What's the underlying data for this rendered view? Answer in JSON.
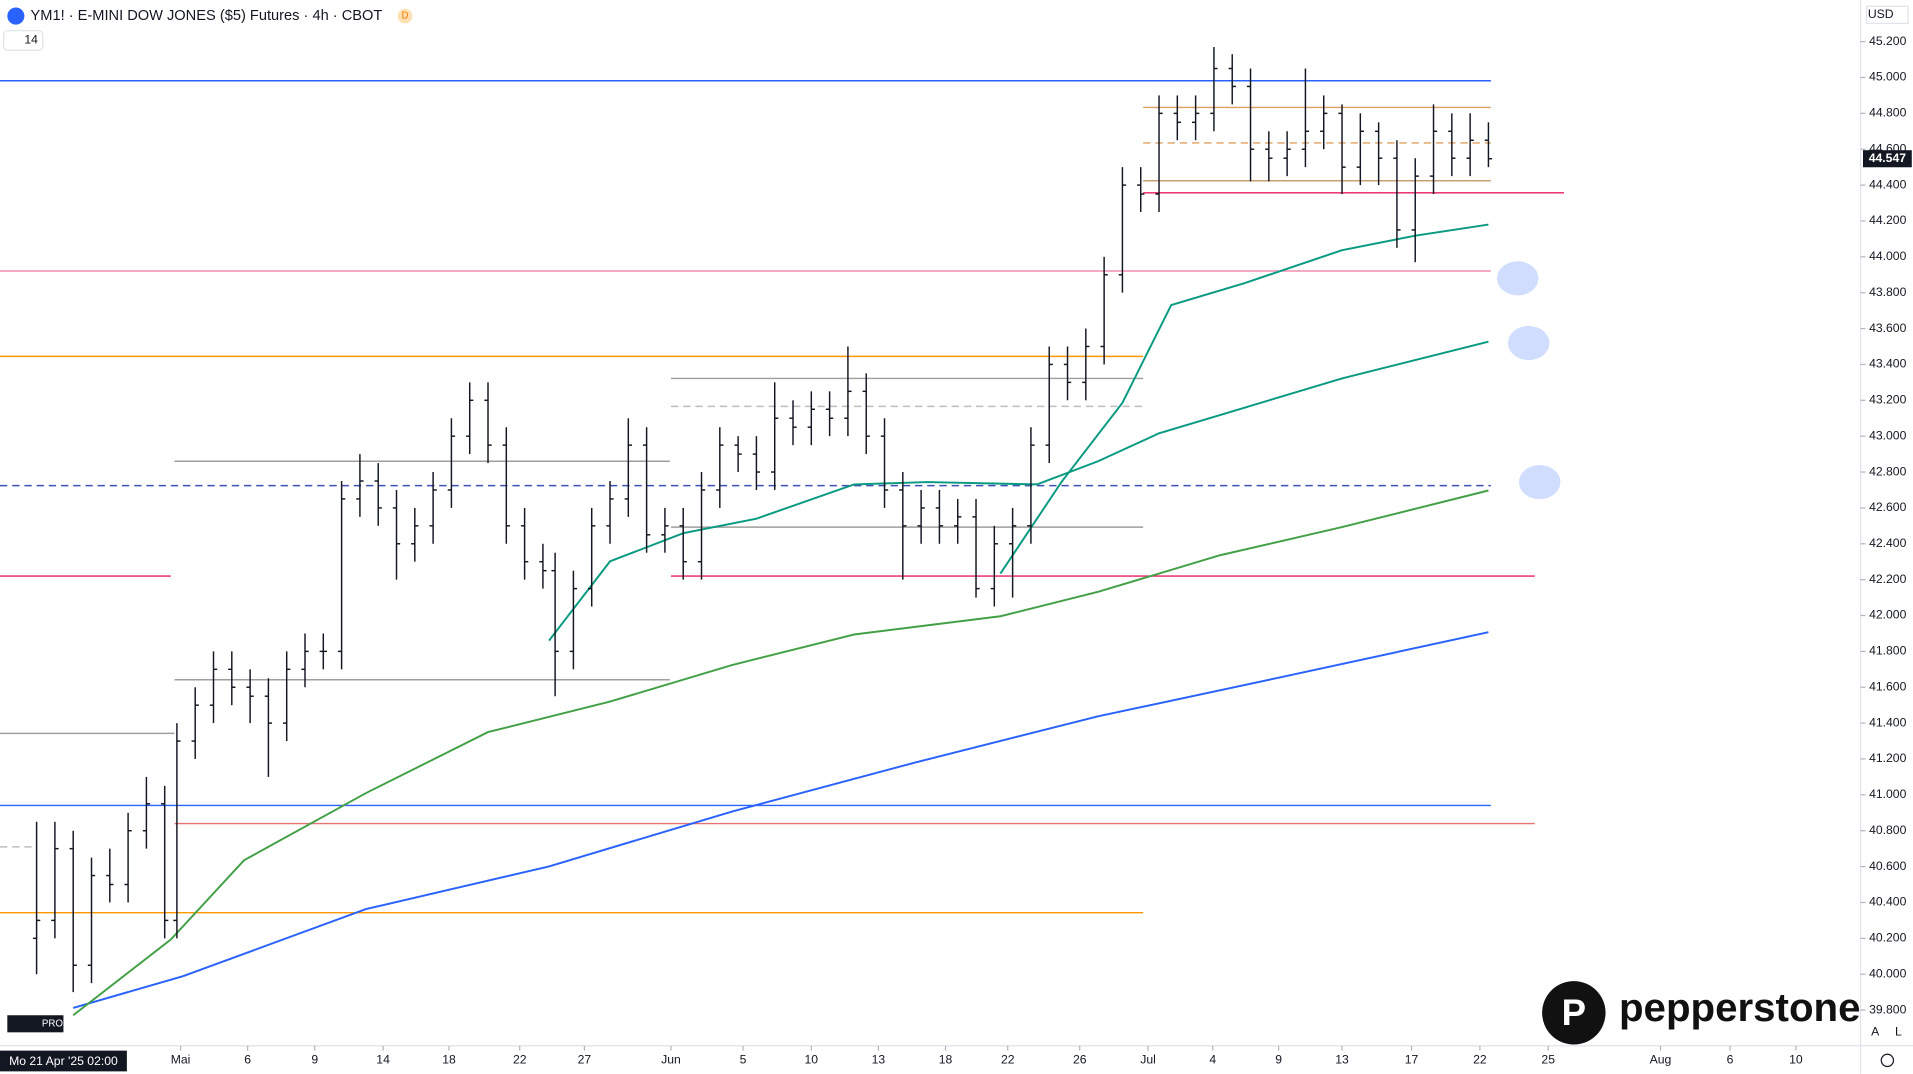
{
  "chart_data": {
    "type": "ohlc",
    "title": "YM1! · E-MINI DOW JONES ($5) Futures · 4h · CBOT",
    "badge": "D",
    "interval_box": "14",
    "currency": "USD",
    "crosshair_label": "Mo 21 Apr '25  02:00",
    "last_price": {
      "value": 44547,
      "label": "44.547"
    },
    "brand": "pepperstone",
    "logo_sub": "PRO",
    "scale_buttons": [
      "A",
      "L"
    ],
    "color": "#131722",
    "xlim": [
      0,
      152.5
    ],
    "ylim": [
      39601,
      45431
    ],
    "xticks": [
      {
        "value": 14.8,
        "label": "Mai"
      },
      {
        "value": 20.3,
        "label": "6"
      },
      {
        "value": 25.8,
        "label": "9"
      },
      {
        "value": 31.4,
        "label": "14"
      },
      {
        "value": 36.8,
        "label": "18"
      },
      {
        "value": 42.6,
        "label": "22"
      },
      {
        "value": 47.9,
        "label": "27"
      },
      {
        "value": 55,
        "label": "Jun"
      },
      {
        "value": 60.9,
        "label": "5"
      },
      {
        "value": 66.5,
        "label": "10"
      },
      {
        "value": 72,
        "label": "13"
      },
      {
        "value": 77.5,
        "label": "18"
      },
      {
        "value": 82.6,
        "label": "22"
      },
      {
        "value": 88.5,
        "label": "26"
      },
      {
        "value": 94.1,
        "label": "Jul"
      },
      {
        "value": 99.4,
        "label": "4"
      },
      {
        "value": 104.8,
        "label": "9"
      },
      {
        "value": 110,
        "label": "13"
      },
      {
        "value": 115.7,
        "label": "17"
      },
      {
        "value": 121.3,
        "label": "22"
      },
      {
        "value": 126.9,
        "label": "25"
      },
      {
        "value": 136.1,
        "label": "Aug"
      },
      {
        "value": 141.8,
        "label": "6"
      },
      {
        "value": 147.2,
        "label": "10"
      }
    ],
    "yticks": [
      {
        "value": 39800,
        "label": "39.800"
      },
      {
        "value": 40000,
        "label": "40.000"
      },
      {
        "value": 40200,
        "label": "40.200"
      },
      {
        "value": 40400,
        "label": "40.400"
      },
      {
        "value": 40600,
        "label": "40.600"
      },
      {
        "value": 40800,
        "label": "40.800"
      },
      {
        "value": 41000,
        "label": "41.000"
      },
      {
        "value": 41200,
        "label": "41.200"
      },
      {
        "value": 41400,
        "label": "41.400"
      },
      {
        "value": 41600,
        "label": "41.600"
      },
      {
        "value": 41800,
        "label": "41.800"
      },
      {
        "value": 42000,
        "label": "42.000"
      },
      {
        "value": 42200,
        "label": "42.200"
      },
      {
        "value": 42400,
        "label": "42.400"
      },
      {
        "value": 42600,
        "label": "42.600"
      },
      {
        "value": 42800,
        "label": "42.800"
      },
      {
        "value": 43000,
        "label": "43.000"
      },
      {
        "value": 43200,
        "label": "43.200"
      },
      {
        "value": 43400,
        "label": "43.400"
      },
      {
        "value": 43600,
        "label": "43.600"
      },
      {
        "value": 43800,
        "label": "43.800"
      },
      {
        "value": 44000,
        "label": "44.000"
      },
      {
        "value": 44200,
        "label": "44.200"
      },
      {
        "value": 44400,
        "label": "44.400"
      },
      {
        "value": 44600,
        "label": "44.600"
      },
      {
        "value": 44800,
        "label": "44.800"
      },
      {
        "value": 45000,
        "label": "45.000"
      },
      {
        "value": 45200,
        "label": "45.200"
      }
    ],
    "x": [
      3,
      4.5,
      6,
      7.5,
      9,
      10.5,
      12,
      13.5,
      14.5,
      16,
      17.5,
      19,
      20.5,
      22,
      23.5,
      25,
      26.5,
      28,
      29.5,
      31,
      32.5,
      34,
      35.5,
      37,
      38.5,
      40,
      41.5,
      43,
      44.5,
      45.5,
      47,
      48.5,
      50,
      51.5,
      53,
      54.5,
      56,
      57.5,
      59,
      60.5,
      62,
      63.5,
      65,
      66.5,
      68,
      69.5,
      71,
      72.5,
      74,
      75.5,
      77,
      78.5,
      80,
      81.5,
      83,
      84.5,
      86,
      87.5,
      89,
      90.5,
      92,
      93.5,
      95,
      96.5,
      98,
      99.5,
      101,
      102.5,
      104,
      105.5,
      107,
      108.5,
      110,
      111.5,
      113,
      114.5,
      116,
      117.5,
      119,
      120.5,
      122
    ],
    "ohlc": [
      [
        40200,
        40850,
        40000,
        40300
      ],
      [
        40300,
        40850,
        40200,
        40700
      ],
      [
        40700,
        40800,
        39900,
        40050
      ],
      [
        40050,
        40650,
        39950,
        40550
      ],
      [
        40550,
        40700,
        40400,
        40500
      ],
      [
        40500,
        40900,
        40400,
        40800
      ],
      [
        40800,
        41100,
        40700,
        40950
      ],
      [
        40950,
        41050,
        40200,
        40300
      ],
      [
        40300,
        41400,
        40200,
        41300
      ],
      [
        41300,
        41600,
        41200,
        41500
      ],
      [
        41500,
        41800,
        41400,
        41700
      ],
      [
        41700,
        41800,
        41500,
        41600
      ],
      [
        41600,
        41700,
        41400,
        41550
      ],
      [
        41550,
        41650,
        41100,
        41400
      ],
      [
        41400,
        41800,
        41300,
        41700
      ],
      [
        41700,
        41900,
        41600,
        41800
      ],
      [
        41800,
        41900,
        41700,
        41800
      ],
      [
        41800,
        42750,
        41700,
        42650
      ],
      [
        42650,
        42900,
        42550,
        42750
      ],
      [
        42750,
        42850,
        42500,
        42600
      ],
      [
        42600,
        42700,
        42200,
        42400
      ],
      [
        42400,
        42600,
        42300,
        42500
      ],
      [
        42500,
        42800,
        42400,
        42700
      ],
      [
        42700,
        43100,
        42600,
        43000
      ],
      [
        43000,
        43300,
        42900,
        43200
      ],
      [
        43200,
        43300,
        42850,
        42950
      ],
      [
        42950,
        43050,
        42400,
        42500
      ],
      [
        42500,
        42600,
        42200,
        42300
      ],
      [
        42300,
        42400,
        42150,
        42250
      ],
      [
        42250,
        42350,
        41550,
        41800
      ],
      [
        41800,
        42250,
        41700,
        42150
      ],
      [
        42150,
        42600,
        42050,
        42500
      ],
      [
        42500,
        42750,
        42400,
        42650
      ],
      [
        42650,
        43100,
        42550,
        42950
      ],
      [
        42950,
        43050,
        42350,
        42450
      ],
      [
        42450,
        42600,
        42350,
        42500
      ],
      [
        42500,
        42600,
        42200,
        42300
      ],
      [
        42300,
        42800,
        42200,
        42700
      ],
      [
        42700,
        43050,
        42600,
        42950
      ],
      [
        42950,
        43000,
        42800,
        42900
      ],
      [
        42900,
        43000,
        42700,
        42800
      ],
      [
        42800,
        43300,
        42700,
        43100
      ],
      [
        43100,
        43200,
        42950,
        43050
      ],
      [
        43050,
        43250,
        42950,
        43150
      ],
      [
        43150,
        43250,
        43000,
        43100
      ],
      [
        43100,
        43500,
        43000,
        43250
      ],
      [
        43250,
        43350,
        42900,
        43000
      ],
      [
        43000,
        43100,
        42600,
        42700
      ],
      [
        42700,
        42800,
        42200,
        42500
      ],
      [
        42500,
        42700,
        42400,
        42600
      ],
      [
        42600,
        42700,
        42400,
        42500
      ],
      [
        42500,
        42650,
        42400,
        42550
      ],
      [
        42550,
        42650,
        42100,
        42150
      ],
      [
        42150,
        42500,
        42050,
        42400
      ],
      [
        42400,
        42600,
        42100,
        42500
      ],
      [
        42500,
        43050,
        42400,
        42950
      ],
      [
        42950,
        43500,
        42850,
        43400
      ],
      [
        43400,
        43500,
        43200,
        43300
      ],
      [
        43300,
        43600,
        43200,
        43500
      ],
      [
        43500,
        44000,
        43400,
        43900
      ],
      [
        43900,
        44500,
        43800,
        44400
      ],
      [
        44400,
        44500,
        44250,
        44350
      ],
      [
        44350,
        44900,
        44250,
        44800
      ],
      [
        44800,
        44900,
        44650,
        44750
      ],
      [
        44750,
        44900,
        44650,
        44800
      ],
      [
        44800,
        45170,
        44700,
        45050
      ],
      [
        45050,
        45130,
        44850,
        44950
      ],
      [
        44950,
        45050,
        44420,
        44600
      ],
      [
        44600,
        44700,
        44420,
        44550
      ],
      [
        44550,
        44700,
        44450,
        44600
      ],
      [
        44600,
        45050,
        44500,
        44700
      ],
      [
        44700,
        44900,
        44600,
        44800
      ],
      [
        44800,
        44850,
        44350,
        44500
      ],
      [
        44500,
        44800,
        44400,
        44700
      ],
      [
        44700,
        44750,
        44400,
        44550
      ],
      [
        44550,
        44650,
        44050,
        44150
      ],
      [
        44150,
        44550,
        43970,
        44450
      ],
      [
        44450,
        44850,
        44350,
        44700
      ],
      [
        44700,
        44800,
        44450,
        44550
      ],
      [
        44550,
        44800,
        44450,
        44650
      ],
      [
        44650,
        44750,
        44500,
        44547
      ]
    ],
    "lines": [
      {
        "color": "#2962ff",
        "x": [
          6,
          15,
          30,
          45,
          60,
          75,
          90,
          105,
          122
        ],
        "values": [
          39812,
          39989,
          40363,
          40601,
          40907,
          41180,
          41438,
          41656,
          41907
        ]
      },
      {
        "color": "#43a047",
        "x": [
          6,
          14,
          20,
          30,
          40,
          50,
          60,
          70,
          82,
          90,
          100,
          110,
          122
        ],
        "values": [
          39771,
          40193,
          40635,
          41010,
          41350,
          41520,
          41724,
          41894,
          41996,
          42132,
          42336,
          42493,
          42697
        ]
      },
      {
        "color": "#089981",
        "x": [
          45,
          50,
          56,
          62,
          70,
          76,
          85,
          90,
          95,
          100,
          110,
          122
        ],
        "values": [
          41860,
          42302,
          42459,
          42540,
          42731,
          42744,
          42731,
          42860,
          43016,
          43118,
          43322,
          43527
        ]
      },
      {
        "color": "#089981",
        "x": [
          82,
          87,
          92,
          96,
          102,
          110,
          116,
          122
        ],
        "values": [
          42234,
          42744,
          43186,
          43731,
          43853,
          44037,
          44118,
          44180
        ]
      }
    ],
    "levels": [
      {
        "value": 44982,
        "color": "#2962ff",
        "from": 0,
        "to": 122.2
      },
      {
        "value": 44833,
        "color": "#e0a060",
        "from": 93.7,
        "to": 122.2
      },
      {
        "value": 44635,
        "color": "#e0a060",
        "from": 93.7,
        "to": 122.2,
        "dashed": true
      },
      {
        "value": 44424,
        "color": "#c8a070",
        "from": 93.7,
        "to": 122.2
      },
      {
        "value": 44357,
        "color": "#e91e63",
        "from": 93.7,
        "to": 128.2
      },
      {
        "value": 43921,
        "color": "#f48fb1",
        "from": 0,
        "to": 122.2
      },
      {
        "value": 43445,
        "color": "#ff9800",
        "from": 0,
        "to": 93.7
      },
      {
        "value": 43322,
        "color": "#9e9e9e",
        "from": 55,
        "to": 93.7
      },
      {
        "value": 43166,
        "color": "#bdbdbd",
        "from": 55,
        "to": 93.7,
        "dashed": true
      },
      {
        "value": 42860,
        "color": "#9e9e9e",
        "from": 14.3,
        "to": 54.9
      },
      {
        "value": 42724,
        "color": "#3f51b5",
        "from": 0,
        "to": 122.2,
        "dashed": true
      },
      {
        "value": 42493,
        "color": "#9e9e9e",
        "from": 55,
        "to": 93.7
      },
      {
        "value": 42220,
        "color": "#e91e63",
        "from": 0,
        "to": 14
      },
      {
        "value": 42220,
        "color": "#e91e63",
        "from": 55,
        "to": 125.8
      },
      {
        "value": 41642,
        "color": "#9e9e9e",
        "from": 14.3,
        "to": 54.9
      },
      {
        "value": 41343,
        "color": "#9e9e9e",
        "from": 0,
        "to": 14.3
      },
      {
        "value": 40941,
        "color": "#2962ff",
        "from": 0,
        "to": 122.2
      },
      {
        "value": 40840,
        "color": "#e57373",
        "from": 14.3,
        "to": 125.8
      },
      {
        "value": 40710,
        "color": "#bdbdbd",
        "from": 0,
        "to": 3,
        "dashed": true
      },
      {
        "value": 40343,
        "color": "#ff9800",
        "from": 0,
        "to": 93.7
      }
    ]
  }
}
